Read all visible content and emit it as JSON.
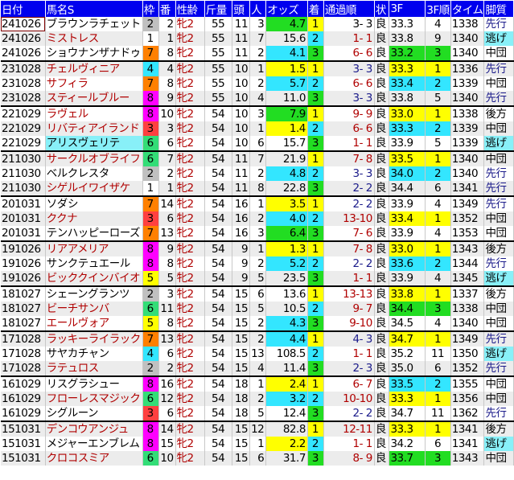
{
  "headers": [
    "日付",
    "馬名S",
    "枠",
    "番",
    "性齢",
    "斤量",
    "頭",
    "人",
    "オッズ",
    "着",
    "通過順",
    "状",
    "3F",
    "3F順",
    "タイム",
    "脚質"
  ],
  "colors": {
    "header_bg": "#0000ee",
    "rank1": "#ffff00",
    "rank2": "#33e6ff",
    "rank3": "#22dd22",
    "name_red": "#b00000",
    "style_navy": "#1a1a8a"
  },
  "waku_colors": {
    "1": "#ffffff",
    "2": "#c0c0c0",
    "3": "#ff4040",
    "4": "#33e6ff",
    "5": "#ffff00",
    "6": "#33dd77",
    "7": "#ff8000",
    "8": "#ff00ff"
  },
  "rows": [
    {
      "date": "241026",
      "name": "ブラウンラチェット",
      "name_red": false,
      "waku": 2,
      "ban": 2,
      "sex": "牝2",
      "kin": 55,
      "to": 11,
      "nin": 3,
      "odds": "4.7",
      "chaku": 1,
      "pass": "3- 3",
      "pass_color": "black",
      "cond": "良",
      "f3": "33.3",
      "f3rank": 4,
      "time": "1338",
      "style": "先行"
    },
    {
      "date": "241026",
      "name": "ミストレス",
      "name_red": true,
      "waku": 1,
      "ban": 1,
      "sex": "牝2",
      "kin": 55,
      "to": 11,
      "nin": 7,
      "odds": "15.6",
      "chaku": 2,
      "pass": "1- 1",
      "pass_color": "red",
      "cond": "良",
      "f3": "33.8",
      "f3rank": 9,
      "time": "1340",
      "style": "逃げ"
    },
    {
      "date": "241026",
      "name": "ショウナンザナドゥ",
      "name_red": false,
      "waku": 7,
      "ban": 8,
      "sex": "牝2",
      "kin": 55,
      "to": 11,
      "nin": 2,
      "odds": "4.1",
      "chaku": 3,
      "pass": "6- 6",
      "pass_color": "red",
      "cond": "良",
      "f3": "33.2",
      "f3rank": 3,
      "time": "1340",
      "style": "中団"
    },
    {
      "date": "231028",
      "name": "チェルヴィニア",
      "name_red": true,
      "waku": 4,
      "ban": 4,
      "sex": "牝2",
      "kin": 55,
      "to": 10,
      "nin": 1,
      "odds": "1.5",
      "chaku": 1,
      "pass": "3- 3",
      "pass_color": "navy",
      "cond": "良",
      "f3": "33.3",
      "f3rank": 1,
      "time": "1336",
      "style": "先行"
    },
    {
      "date": "231028",
      "name": "サフィラ",
      "name_red": true,
      "waku": 7,
      "ban": 8,
      "sex": "牝2",
      "kin": 55,
      "to": 10,
      "nin": 2,
      "odds": "5.7",
      "chaku": 2,
      "pass": "6- 6",
      "pass_color": "red",
      "cond": "良",
      "f3": "33.4",
      "f3rank": 2,
      "time": "1339",
      "style": "中団"
    },
    {
      "date": "231028",
      "name": "スティールブルー",
      "name_red": true,
      "waku": 8,
      "ban": 9,
      "sex": "牝2",
      "kin": 55,
      "to": 10,
      "nin": 4,
      "odds": "11.0",
      "chaku": 3,
      "pass": "3- 3",
      "pass_color": "navy",
      "cond": "良",
      "f3": "33.8",
      "f3rank": 5,
      "time": "1340",
      "style": "先行"
    },
    {
      "date": "221029",
      "name": "ラヴェル",
      "name_red": true,
      "waku": 8,
      "ban": 10,
      "sex": "牝2",
      "kin": 54,
      "to": 10,
      "nin": 3,
      "odds": "7.9",
      "chaku": 1,
      "pass": "9- 9",
      "pass_color": "red",
      "cond": "良",
      "f3": "33.0",
      "f3rank": 1,
      "time": "1338",
      "style": "後方"
    },
    {
      "date": "221029",
      "name": "リバティアイランド",
      "name_red": true,
      "waku": 3,
      "ban": 3,
      "sex": "牝2",
      "kin": 54,
      "to": 10,
      "nin": 1,
      "odds": "1.4",
      "chaku": 2,
      "pass": "6- 6",
      "pass_color": "red",
      "cond": "良",
      "f3": "33.3",
      "f3rank": 2,
      "time": "1339",
      "style": "中団"
    },
    {
      "date": "221029",
      "name": "アリスヴェリテ",
      "name_red": false,
      "name_hl": true,
      "waku": 6,
      "ban": 6,
      "sex": "牝2",
      "kin": 54,
      "to": 10,
      "nin": 6,
      "odds": "15.7",
      "chaku": 3,
      "pass": "1- 1",
      "pass_color": "red",
      "cond": "良",
      "f3": "33.9",
      "f3rank": 5,
      "time": "1339",
      "style": "逃げ"
    },
    {
      "date": "211030",
      "name": "サークルオブライフ",
      "name_red": true,
      "waku": 6,
      "ban": 7,
      "sex": "牝2",
      "kin": 54,
      "to": 11,
      "nin": 7,
      "odds": "21.9",
      "chaku": 1,
      "pass": "7- 8",
      "pass_color": "red",
      "cond": "良",
      "f3": "33.5",
      "f3rank": 1,
      "time": "1340",
      "style": "中団"
    },
    {
      "date": "211030",
      "name": "ベルクレスタ",
      "name_red": false,
      "waku": 2,
      "ban": 2,
      "sex": "牝2",
      "kin": 54,
      "to": 11,
      "nin": 2,
      "odds": "4.8",
      "chaku": 2,
      "pass": "3- 3",
      "pass_color": "navy",
      "cond": "良",
      "f3": "34.0",
      "f3rank": 2,
      "time": "1340",
      "style": "先行"
    },
    {
      "date": "211030",
      "name": "シゲルイワイザケ",
      "name_red": true,
      "waku": 1,
      "ban": 1,
      "sex": "牝2",
      "kin": 54,
      "to": 11,
      "nin": 8,
      "odds": "22.8",
      "chaku": 3,
      "pass": "2- 2",
      "pass_color": "navy",
      "cond": "良",
      "f3": "34.4",
      "f3rank": 6,
      "time": "1341",
      "style": "先行"
    },
    {
      "date": "201031",
      "name": "ソダシ",
      "name_red": false,
      "waku": 7,
      "ban": 14,
      "sex": "牝2",
      "kin": 54,
      "to": 16,
      "nin": 1,
      "odds": "3.5",
      "chaku": 1,
      "pass": "2- 2",
      "pass_color": "navy",
      "cond": "良",
      "f3": "33.9",
      "f3rank": 4,
      "time": "1349",
      "style": "先行"
    },
    {
      "date": "201031",
      "name": "ククナ",
      "name_red": true,
      "waku": 3,
      "ban": 6,
      "sex": "牝2",
      "kin": 54,
      "to": 16,
      "nin": 2,
      "odds": "4.0",
      "chaku": 2,
      "pass": "13-10",
      "pass_color": "red",
      "cond": "良",
      "f3": "33.4",
      "f3rank": 1,
      "time": "1352",
      "style": "中団"
    },
    {
      "date": "201031",
      "name": "テンハッピーローズ",
      "name_red": false,
      "waku": 7,
      "ban": 13,
      "sex": "牝2",
      "kin": 54,
      "to": 16,
      "nin": 3,
      "odds": "6.4",
      "chaku": 3,
      "pass": "7- 6",
      "pass_color": "red",
      "cond": "良",
      "f3": "33.9",
      "f3rank": 4,
      "time": "1353",
      "style": "中団"
    },
    {
      "date": "191026",
      "name": "リアアメリア",
      "name_red": true,
      "waku": 8,
      "ban": 9,
      "sex": "牝2",
      "kin": 54,
      "to": 9,
      "nin": 1,
      "odds": "1.3",
      "chaku": 1,
      "pass": "7- 8",
      "pass_color": "red",
      "cond": "良",
      "f3": "33.0",
      "f3rank": 1,
      "time": "1343",
      "style": "後方"
    },
    {
      "date": "191026",
      "name": "サンクテュエール",
      "name_red": false,
      "waku": 8,
      "ban": 8,
      "sex": "牝2",
      "kin": 54,
      "to": 9,
      "nin": 2,
      "odds": "5.2",
      "chaku": 2,
      "pass": "2- 2",
      "pass_color": "navy",
      "cond": "良",
      "f3": "33.6",
      "f3rank": 2,
      "time": "1344",
      "style": "先行"
    },
    {
      "date": "191026",
      "name": "ビッククインバイオ",
      "name_red": true,
      "waku": 5,
      "ban": 5,
      "sex": "牝2",
      "kin": 54,
      "to": 9,
      "nin": 5,
      "odds": "23.5",
      "chaku": 3,
      "pass": "1- 1",
      "pass_color": "red",
      "cond": "良",
      "f3": "33.9",
      "f3rank": 4,
      "time": "1345",
      "style": "逃げ"
    },
    {
      "date": "181027",
      "name": "シェーングランツ",
      "name_red": false,
      "waku": 2,
      "ban": 3,
      "sex": "牝2",
      "kin": 54,
      "to": 15,
      "nin": 6,
      "odds": "13.6",
      "chaku": 1,
      "pass": "13-13",
      "pass_color": "red",
      "cond": "良",
      "f3": "33.8",
      "f3rank": 1,
      "time": "1337",
      "style": "後方"
    },
    {
      "date": "181027",
      "name": "ビーチサンバ",
      "name_red": true,
      "waku": 6,
      "ban": 11,
      "sex": "牝2",
      "kin": 54,
      "to": 15,
      "nin": 5,
      "odds": "10.5",
      "chaku": 2,
      "pass": "9- 7",
      "pass_color": "red",
      "cond": "良",
      "f3": "34.4",
      "f3rank": 3,
      "time": "1338",
      "style": "中団"
    },
    {
      "date": "181027",
      "name": "エールヴォア",
      "name_red": true,
      "waku": 5,
      "ban": 8,
      "sex": "牝2",
      "kin": 54,
      "to": 15,
      "nin": 2,
      "odds": "4.3",
      "chaku": 3,
      "pass": "9-10",
      "pass_color": "red",
      "cond": "良",
      "f3": "34.5",
      "f3rank": 4,
      "time": "1340",
      "style": "中団"
    },
    {
      "date": "171028",
      "name": "ラッキーライラック",
      "name_red": true,
      "waku": 7,
      "ban": 13,
      "sex": "牝2",
      "kin": 54,
      "to": 15,
      "nin": 2,
      "odds": "4.4",
      "chaku": 1,
      "pass": "4- 3",
      "pass_color": "navy",
      "cond": "良",
      "f3": "34.7",
      "f3rank": 1,
      "time": "1349",
      "style": "先行"
    },
    {
      "date": "171028",
      "name": "サヤカチャン",
      "name_red": false,
      "waku": 4,
      "ban": 6,
      "sex": "牝2",
      "kin": 54,
      "to": 15,
      "nin": 13,
      "odds": "108.5",
      "chaku": 2,
      "pass": "1- 1",
      "pass_color": "red",
      "cond": "良",
      "f3": "35.2",
      "f3rank": 11,
      "time": "1350",
      "style": "逃げ"
    },
    {
      "date": "171028",
      "name": "ラテュロス",
      "name_red": true,
      "waku": 2,
      "ban": 2,
      "sex": "牝2",
      "kin": 54,
      "to": 15,
      "nin": 4,
      "odds": "11.4",
      "chaku": 3,
      "pass": "2- 3",
      "pass_color": "navy",
      "cond": "良",
      "f3": "35.0",
      "f3rank": 6,
      "time": "1352",
      "style": "先行"
    },
    {
      "date": "161029",
      "name": "リスグラシュー",
      "name_red": false,
      "waku": 8,
      "ban": 16,
      "sex": "牝2",
      "kin": 54,
      "to": 18,
      "nin": 1,
      "odds": "2.4",
      "chaku": 1,
      "pass": "6- 7",
      "pass_color": "red",
      "cond": "良",
      "f3": "33.5",
      "f3rank": 2,
      "time": "1355",
      "style": "中団"
    },
    {
      "date": "161029",
      "name": "フローレスマジック",
      "name_red": true,
      "waku": 6,
      "ban": 12,
      "sex": "牝2",
      "kin": 54,
      "to": 18,
      "nin": 2,
      "odds": "3.2",
      "chaku": 2,
      "pass": "10-10",
      "pass_color": "red",
      "cond": "良",
      "f3": "33.3",
      "f3rank": 1,
      "time": "1356",
      "style": "中団"
    },
    {
      "date": "161029",
      "name": "シグルーン",
      "name_red": false,
      "waku": 3,
      "ban": 6,
      "sex": "牝2",
      "kin": 54,
      "to": 18,
      "nin": 5,
      "odds": "12.4",
      "chaku": 3,
      "pass": "2- 2",
      "pass_color": "navy",
      "cond": "良",
      "f3": "34.7",
      "f3rank": 11,
      "time": "1362",
      "style": "先行"
    },
    {
      "date": "151031",
      "name": "デンコウアンジュ",
      "name_red": true,
      "waku": 8,
      "ban": 14,
      "sex": "牝2",
      "kin": 54,
      "to": 15,
      "nin": 12,
      "odds": "82.8",
      "chaku": 1,
      "pass": "12-11",
      "pass_color": "red",
      "cond": "良",
      "f3": "33.3",
      "f3rank": 1,
      "time": "1341",
      "style": "後方"
    },
    {
      "date": "151031",
      "name": "メジャーエンブレム",
      "name_red": false,
      "waku": 8,
      "ban": 15,
      "sex": "牝2",
      "kin": 54,
      "to": 15,
      "nin": 1,
      "odds": "2.2",
      "chaku": 2,
      "pass": "1- 1",
      "pass_color": "red",
      "cond": "良",
      "f3": "34.2",
      "f3rank": 6,
      "time": "1341",
      "style": "逃げ"
    },
    {
      "date": "151031",
      "name": "クロコスミア",
      "name_red": true,
      "waku": 6,
      "ban": 10,
      "sex": "牝2",
      "kin": 54,
      "to": 15,
      "nin": 6,
      "odds": "31.7",
      "chaku": 3,
      "pass": "8- 9",
      "pass_color": "red",
      "cond": "良",
      "f3": "33.7",
      "f3rank": 3,
      "time": "1343",
      "style": "中団"
    }
  ]
}
